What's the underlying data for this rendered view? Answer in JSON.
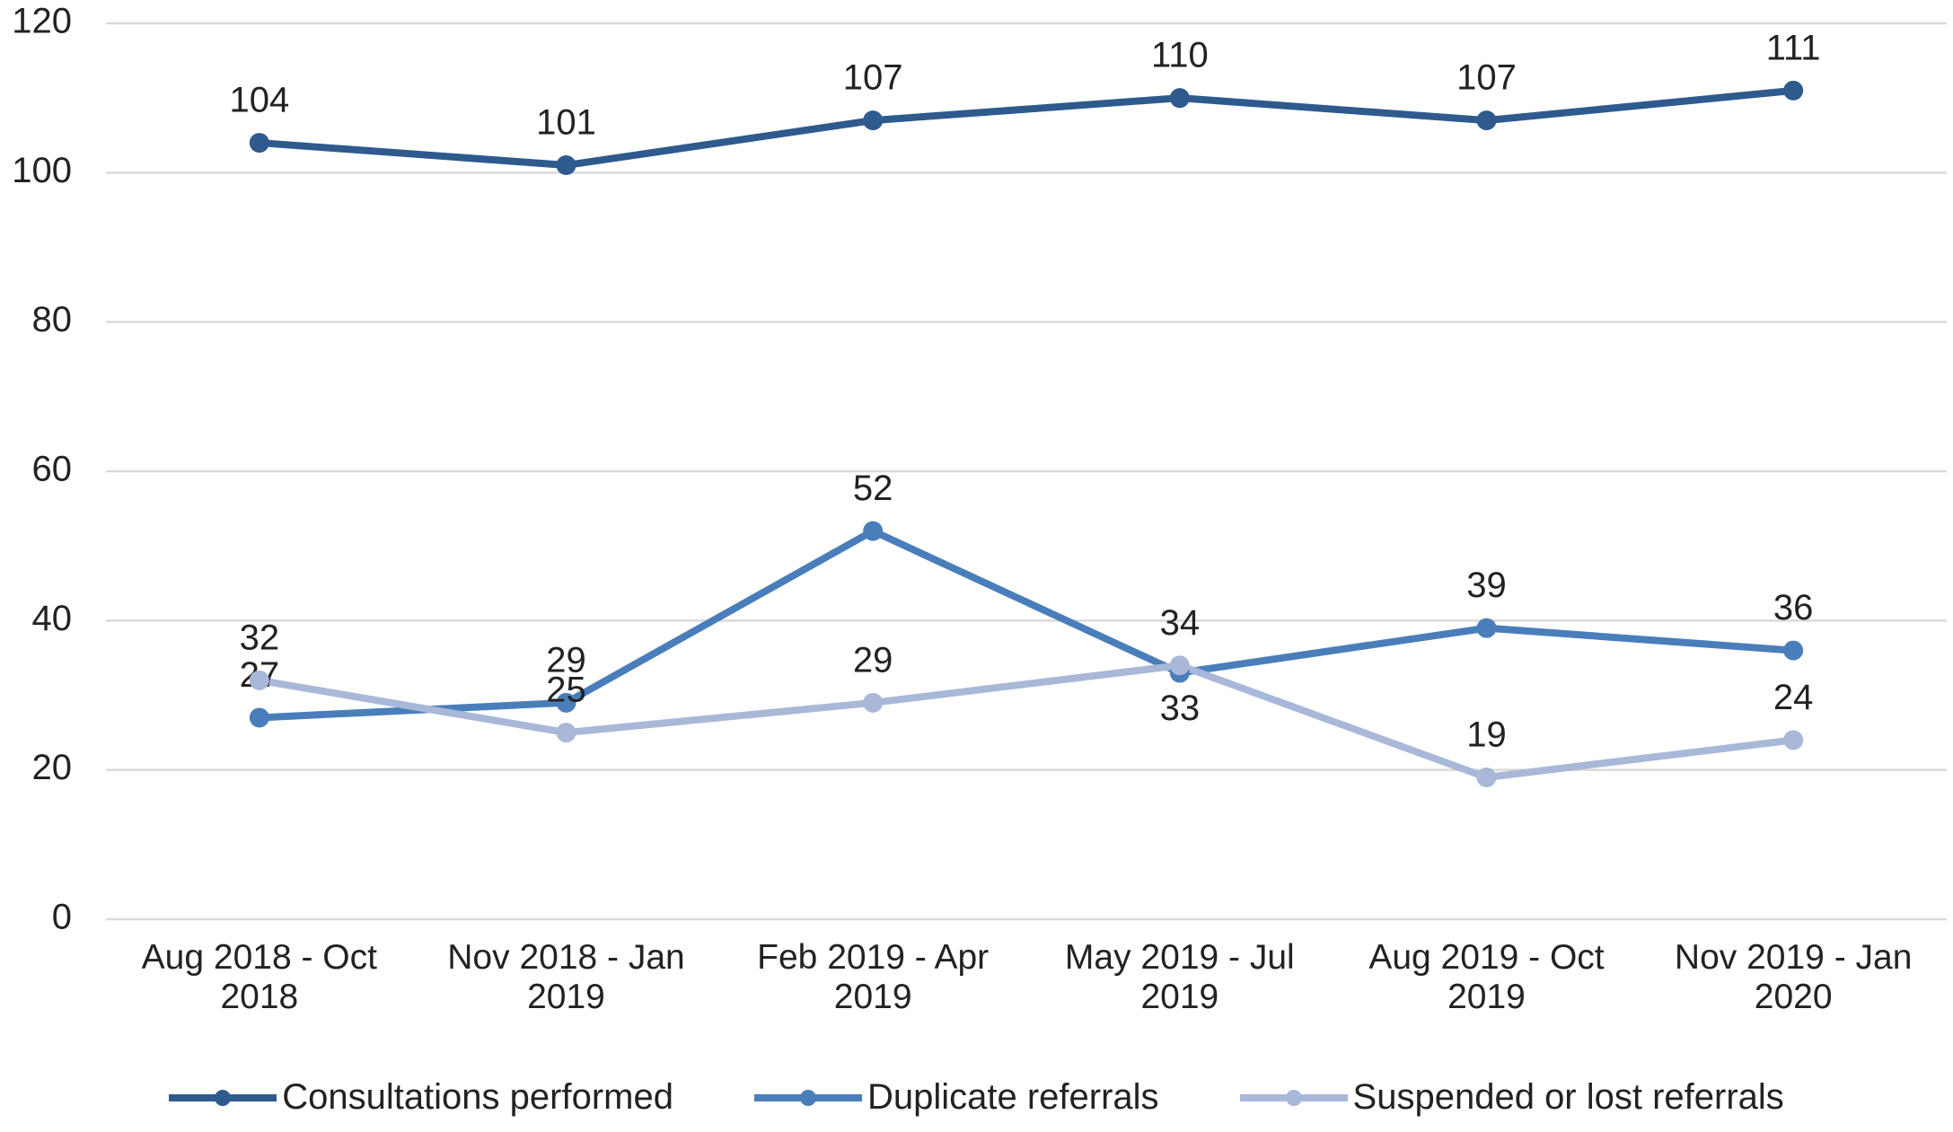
{
  "chart_data": {
    "type": "line",
    "categories": [
      "Aug 2018 - Oct 2018",
      "Nov 2018 - Jan 2019",
      "Feb 2019 - Apr 2019",
      "May 2019 - Jul 2019",
      "Aug 2019 - Oct 2019",
      "Nov 2019 - Jan 2020"
    ],
    "series": [
      {
        "name": "Consultations performed",
        "color": "#2e5a8e",
        "values": [
          104,
          101,
          107,
          110,
          107,
          111
        ]
      },
      {
        "name": "Duplicate referrals",
        "color": "#4a7ebb",
        "values": [
          27,
          29,
          52,
          33,
          39,
          36
        ]
      },
      {
        "name": "Suspended or lost referrals",
        "color": "#a9b8d8",
        "values": [
          32,
          25,
          29,
          34,
          19,
          24
        ]
      }
    ],
    "ylim": [
      0,
      120
    ],
    "yticks": [
      0,
      20,
      40,
      60,
      80,
      100,
      120
    ],
    "grid": true,
    "legend": "bottom"
  }
}
